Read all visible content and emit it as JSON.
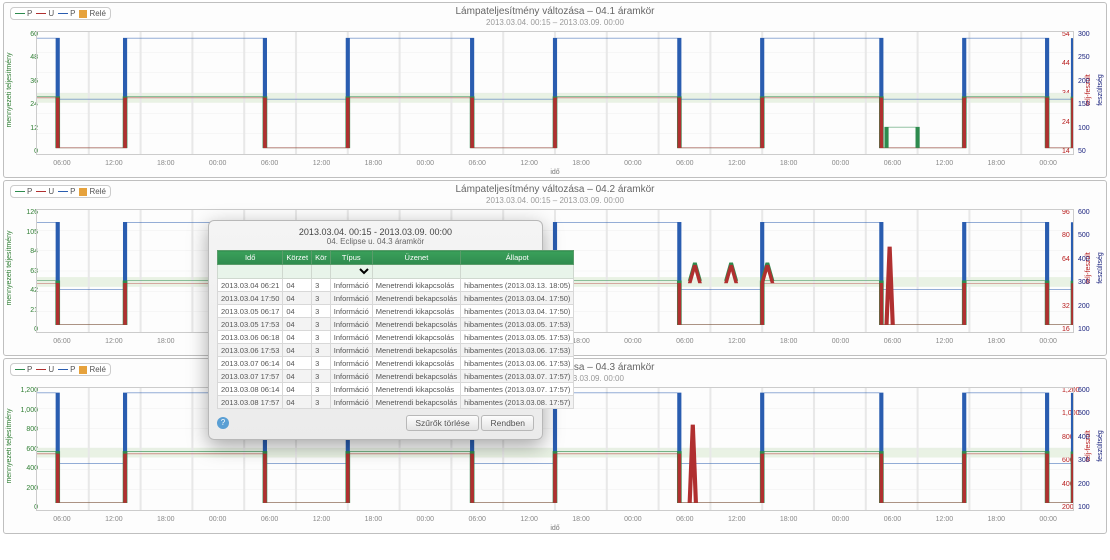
{
  "legend": {
    "p": "P",
    "u": "U",
    "p2": "P",
    "rele": "Relé"
  },
  "colors": {
    "p_green": "#2e8b4e",
    "u_red": "#b03030",
    "p_blue": "#2a5db0",
    "rele": "#e6a23c",
    "grid": "#e8e8e8",
    "band": "#e9f2e4"
  },
  "x_ticks": [
    "06:00",
    "12:00",
    "18:00",
    "00:00",
    "06:00",
    "12:00",
    "18:00",
    "00:00",
    "06:00",
    "12:00",
    "18:00",
    "00:00",
    "06:00",
    "12:00",
    "18:00",
    "00:00",
    "06:00",
    "12:00",
    "18:00",
    "00:00"
  ],
  "x_label": "idő",
  "axis_left_label": "mennyezeti teljesítmény",
  "axis_right_label": "telj-feszült",
  "axis_right2_label": "feszültség",
  "square": {
    "lows": [
      0,
      0.085,
      0.3,
      0.5,
      0.7,
      0.895,
      1.0
    ],
    "period": 0.2
  },
  "panels": [
    {
      "title": "Lámpateljesítmény változása – 04.1 áramkör",
      "subtitle": "2013.03.04. 00:15 – 2013.03.09. 00:00",
      "y_left": {
        "min": 0,
        "max": 60,
        "ticks": [
          "60",
          "48",
          "36",
          "24",
          "12",
          "0"
        ]
      },
      "y_right": {
        "ticks": [
          "54",
          "44",
          "34",
          "24",
          "14"
        ]
      },
      "y_right2": {
        "ticks": [
          "300",
          "250",
          "200",
          "150",
          "100",
          "50"
        ]
      },
      "green_high": 47,
      "green_low": 5,
      "red_high": 46,
      "red_low": 5,
      "blue_high": 95,
      "blue_low": 45,
      "spikes": [
        {
          "x": 0.82,
          "kind": "step"
        }
      ]
    },
    {
      "title": "Lámpateljesítmény változása – 04.2 áramkör",
      "subtitle": "2013.03.04. 00:15 – 2013.03.09. 00:00",
      "y_left": {
        "min": 0,
        "max": 130,
        "ticks": [
          "126",
          "105",
          "84",
          "63",
          "42",
          "21",
          "0"
        ]
      },
      "y_right": {
        "ticks": [
          "96",
          "80",
          "64",
          "48",
          "32",
          "16"
        ]
      },
      "y_right2": {
        "ticks": [
          "600",
          "500",
          "400",
          "300",
          "200",
          "100"
        ]
      },
      "green_high": 42,
      "green_low": 6,
      "red_high": 40,
      "red_low": 6,
      "blue_high": 90,
      "blue_low": 35,
      "spikes": [
        {
          "x": 0.63,
          "kind": "bumps"
        },
        {
          "x": 0.82,
          "kind": "spike"
        }
      ]
    },
    {
      "title": "Lámpateljesítmény változása – 04.3 áramkör",
      "subtitle": "2013.03.04. 00:15 – 2013.03.09. 00:00",
      "y_left": {
        "min": 0,
        "max": 1300,
        "ticks": [
          "1,200",
          "1,000",
          "800",
          "600",
          "400",
          "200",
          "0"
        ]
      },
      "y_right": {
        "ticks": [
          "1,200",
          "1,000",
          "800",
          "600",
          "400",
          "200"
        ]
      },
      "y_right2": {
        "ticks": [
          "600",
          "500",
          "400",
          "300",
          "200",
          "100"
        ]
      },
      "green_high": 48,
      "green_low": 6,
      "red_high": 46,
      "red_low": 6,
      "blue_high": 96,
      "blue_low": 38,
      "spikes": [
        {
          "x": 0.63,
          "kind": "spike"
        }
      ]
    }
  ],
  "dialog": {
    "title": "2013.03.04. 00:15 - 2013.03.09. 00:00",
    "subtitle": "04. Eclipse u. 04.3 áramkör",
    "columns": [
      "Idő",
      "Körzet",
      "Kör",
      "Típus",
      "Üzenet",
      "Állapot"
    ],
    "rows": [
      [
        "2013.03.04 06:21",
        "04",
        "3",
        "Információ",
        "Menetrendi kikapcsolás",
        "hibamentes (2013.03.13. 18:05)"
      ],
      [
        "2013.03.04 17:50",
        "04",
        "3",
        "Információ",
        "Menetrendi bekapcsolás",
        "hibamentes (2013.03.04. 17:50)"
      ],
      [
        "2013.03.05 06:17",
        "04",
        "3",
        "Információ",
        "Menetrendi kikapcsolás",
        "hibamentes (2013.03.04. 17:50)"
      ],
      [
        "2013.03.05 17:53",
        "04",
        "3",
        "Információ",
        "Menetrendi bekapcsolás",
        "hibamentes (2013.03.05. 17:53)"
      ],
      [
        "2013.03.06 06:18",
        "04",
        "3",
        "Információ",
        "Menetrendi kikapcsolás",
        "hibamentes (2013.03.05. 17:53)"
      ],
      [
        "2013.03.06 17:53",
        "04",
        "3",
        "Információ",
        "Menetrendi bekapcsolás",
        "hibamentes (2013.03.06. 17:53)"
      ],
      [
        "2013.03.07 06:14",
        "04",
        "3",
        "Információ",
        "Menetrendi kikapcsolás",
        "hibamentes (2013.03.06. 17:53)"
      ],
      [
        "2013.03.07 17:57",
        "04",
        "3",
        "Információ",
        "Menetrendi bekapcsolás",
        "hibamentes (2013.03.07. 17:57)"
      ],
      [
        "2013.03.08 06:14",
        "04",
        "3",
        "Információ",
        "Menetrendi kikapcsolás",
        "hibamentes (2013.03.07. 17:57)"
      ],
      [
        "2013.03.08 17:57",
        "04",
        "3",
        "Információ",
        "Menetrendi bekapcsolás",
        "hibamentes (2013.03.08. 17:57)"
      ]
    ],
    "buttons": {
      "delete": "Szűrők törlése",
      "ok": "Rendben"
    }
  }
}
